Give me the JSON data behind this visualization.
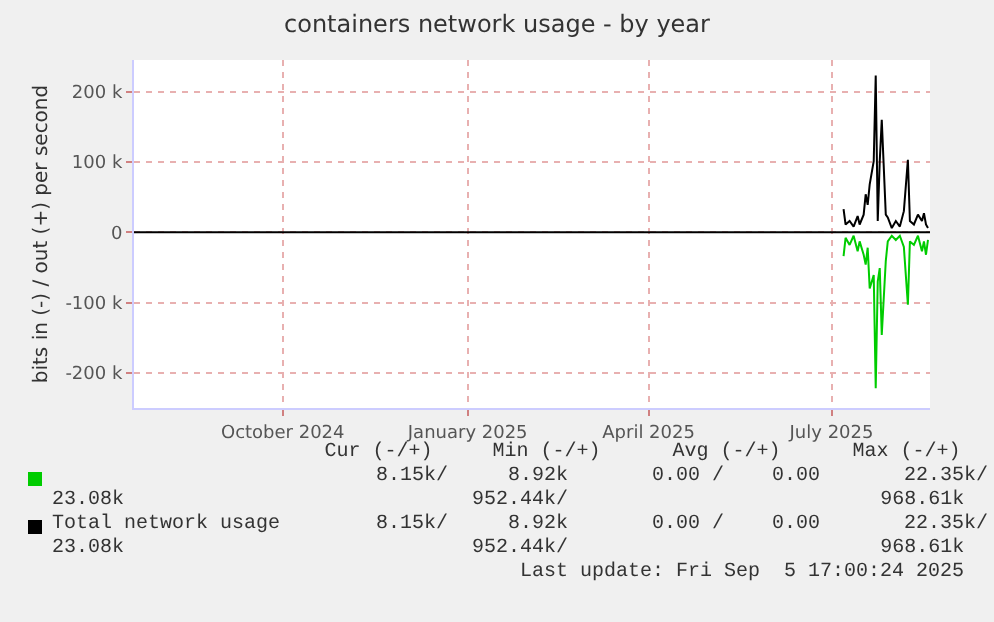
{
  "chart_data": {
    "type": "line",
    "title": "containers network usage - by year",
    "ylabel": "bits in (-) / out (+) per second",
    "xlim": [
      "2024-07-19",
      "2025-08-19"
    ],
    "xticks": [
      {
        "value": "2024-10-01",
        "label": "October 2024"
      },
      {
        "value": "2025-01-01",
        "label": "January 2025"
      },
      {
        "value": "2025-04-01",
        "label": "April 2025"
      },
      {
        "value": "2025-07-01",
        "label": "July 2025"
      }
    ],
    "ylim": [
      -250000,
      245000
    ],
    "yticks": [
      {
        "value": -200000,
        "label": "-200 k"
      },
      {
        "value": -100000,
        "label": "-100 k"
      },
      {
        "value": 0,
        "label": "0"
      },
      {
        "value": 100000,
        "label": "100 k"
      },
      {
        "value": 200000,
        "label": "200 k"
      }
    ],
    "grid": true,
    "line_style": "solid",
    "legend": "bottom",
    "ref_lines": [
      {
        "axis": "y",
        "value": 0,
        "color": "#000000"
      }
    ],
    "series": [
      {
        "color": "#00cc00",
        "x": [
          "2025-07-07",
          "2025-07-08",
          "2025-07-10",
          "2025-07-12",
          "2025-07-14",
          "2025-07-15",
          "2025-07-17",
          "2025-07-18",
          "2025-07-19",
          "2025-07-20",
          "2025-07-22",
          "2025-07-23",
          "2025-07-24",
          "2025-07-25",
          "2025-07-26",
          "2025-07-28",
          "2025-07-29",
          "2025-07-31",
          "2025-08-02",
          "2025-08-04",
          "2025-08-06",
          "2025-08-08",
          "2025-08-09",
          "2025-08-11",
          "2025-08-13",
          "2025-08-15",
          "2025-08-16",
          "2025-08-17",
          "2025-08-18"
        ],
        "values": [
          -34000,
          -8000,
          -18000,
          -5000,
          -27000,
          -13000,
          -32000,
          -46000,
          -22000,
          -80000,
          -61000,
          -222000,
          -70000,
          -51000,
          -146000,
          -41000,
          -13000,
          -5000,
          -11000,
          -5000,
          -21000,
          -103000,
          -13000,
          -18000,
          -5000,
          -27000,
          -13000,
          -32000,
          -11000
        ]
      },
      {
        "name": "Total network usage",
        "color": "#000000",
        "x": [
          "2025-07-07",
          "2025-07-08",
          "2025-07-10",
          "2025-07-12",
          "2025-07-14",
          "2025-07-15",
          "2025-07-17",
          "2025-07-18",
          "2025-07-19",
          "2025-07-20",
          "2025-07-22",
          "2025-07-23",
          "2025-07-24",
          "2025-07-25",
          "2025-07-26",
          "2025-07-28",
          "2025-07-29",
          "2025-07-31",
          "2025-08-02",
          "2025-08-04",
          "2025-08-06",
          "2025-08-08",
          "2025-08-09",
          "2025-08-11",
          "2025-08-13",
          "2025-08-15",
          "2025-08-16",
          "2025-08-17",
          "2025-08-18"
        ],
        "values": [
          33000,
          11000,
          16000,
          8000,
          23000,
          11000,
          25000,
          54000,
          39000,
          68000,
          101000,
          223000,
          16000,
          101000,
          160000,
          25000,
          21000,
          6000,
          16000,
          8000,
          30000,
          103000,
          16000,
          11000,
          25000,
          16000,
          27000,
          11000,
          6000
        ]
      }
    ],
    "annotations": [
      "Cur (-/+)     Min (-/+)      Avg (-/+)      Max (-/+)",
      "8.15k/     8.92k       0.00 /    0.00       22.35k/",
      "23.08k                             952.44k/                          968.61k",
      "8.15k/     8.92k       0.00 /    0.00       22.35k/",
      "23.08k                             952.44k/                          968.61k",
      "Last update: Fri Sep  5 17:00:24 2025"
    ]
  }
}
